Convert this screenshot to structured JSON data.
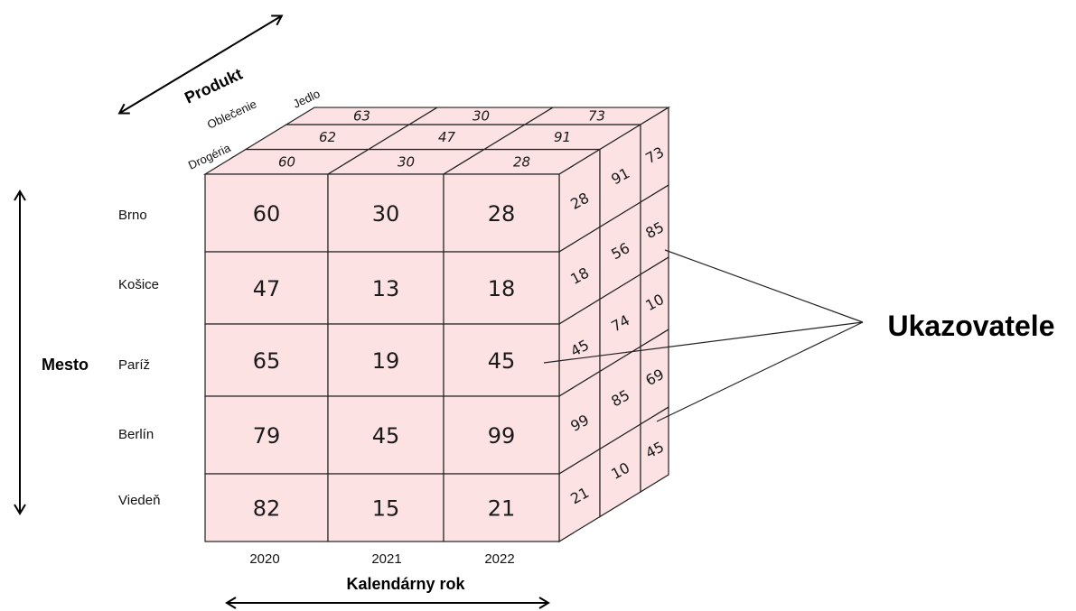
{
  "colors": {
    "cell_fill": "#fde2e4",
    "stroke": "#222222",
    "text": "#111111"
  },
  "axes": {
    "product_title": "Produkt",
    "city_title": "Mesto",
    "year_title": "Kalendárny rok",
    "measures_title": "Ukazovatele"
  },
  "products": [
    "Drogéria",
    "Oblečenie",
    "Jedlo"
  ],
  "cities": [
    "Brno",
    "Košice",
    "Paríž",
    "Berlín",
    "Viedeň"
  ],
  "years": [
    "2020",
    "2021",
    "2022"
  ],
  "front_values": [
    [
      "60",
      "30",
      "28"
    ],
    [
      "47",
      "13",
      "18"
    ],
    [
      "65",
      "19",
      "45"
    ],
    [
      "79",
      "45",
      "99"
    ],
    [
      "82",
      "15",
      "21"
    ]
  ],
  "top_values": [
    [
      "60",
      "30",
      "28"
    ],
    [
      "62",
      "47",
      "91"
    ],
    [
      "63",
      "30",
      "73"
    ]
  ],
  "side_values": [
    [
      "28",
      "91",
      "73"
    ],
    [
      "18",
      "56",
      "85"
    ],
    [
      "45",
      "74",
      "10"
    ],
    [
      "99",
      "85",
      "69"
    ],
    [
      "21",
      "10",
      "45"
    ]
  ]
}
